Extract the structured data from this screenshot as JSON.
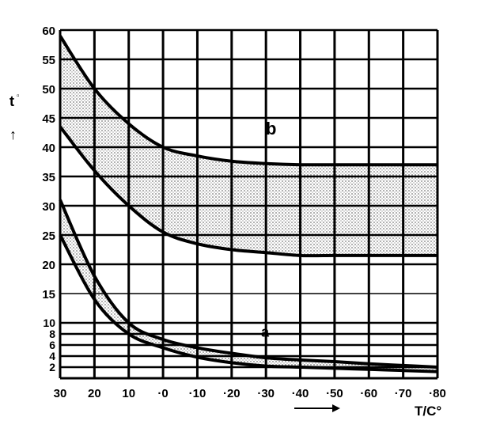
{
  "chart_data": {
    "type": "area",
    "title": "",
    "xlabel": "T/C°",
    "ylabel": "t",
    "x_ticks": [
      "30",
      "20",
      "10",
      "·0",
      "·10",
      "·20",
      "·30",
      "·40",
      "·50",
      "·60",
      "·70",
      "·80"
    ],
    "x_values": [
      -30,
      -20,
      -10,
      0,
      10,
      20,
      30,
      40,
      50,
      60,
      70,
      80
    ],
    "xlim": [
      -30,
      80
    ],
    "y_ticks_upper": [
      "20",
      "25",
      "30",
      "35",
      "40",
      "45",
      "50",
      "55",
      "60"
    ],
    "y_ticks_lower": [
      "2",
      "4",
      "6",
      "8",
      "10"
    ],
    "y_tick_15": "15",
    "grid": true,
    "bands": [
      {
        "label": "b",
        "upper": [
          {
            "x": -30,
            "y": 59
          },
          {
            "x": -20,
            "y": 50
          },
          {
            "x": -10,
            "y": 44
          },
          {
            "x": 0,
            "y": 40
          },
          {
            "x": 10,
            "y": 38.5
          },
          {
            "x": 20,
            "y": 37.6
          },
          {
            "x": 30,
            "y": 37.2
          },
          {
            "x": 40,
            "y": 37
          },
          {
            "x": 50,
            "y": 37
          },
          {
            "x": 60,
            "y": 37
          },
          {
            "x": 70,
            "y": 37
          },
          {
            "x": 80,
            "y": 37
          }
        ],
        "lower": [
          {
            "x": -30,
            "y": 43.5
          },
          {
            "x": -20,
            "y": 36
          },
          {
            "x": -10,
            "y": 30
          },
          {
            "x": 0,
            "y": 25.5
          },
          {
            "x": 10,
            "y": 23.5
          },
          {
            "x": 20,
            "y": 22.5
          },
          {
            "x": 30,
            "y": 22
          },
          {
            "x": 40,
            "y": 21.5
          },
          {
            "x": 50,
            "y": 21.5
          },
          {
            "x": 60,
            "y": 21.5
          },
          {
            "x": 70,
            "y": 21.5
          },
          {
            "x": 80,
            "y": 21.5
          }
        ]
      },
      {
        "label": "a",
        "upper": [
          {
            "x": -30,
            "y": 31
          },
          {
            "x": -20,
            "y": 18
          },
          {
            "x": -10,
            "y": 10
          },
          {
            "x": 0,
            "y": 7
          },
          {
            "x": 10,
            "y": 5.5
          },
          {
            "x": 20,
            "y": 4.5
          },
          {
            "x": 30,
            "y": 3.7
          },
          {
            "x": 40,
            "y": 3.3
          },
          {
            "x": 50,
            "y": 3
          },
          {
            "x": 60,
            "y": 2.6
          },
          {
            "x": 70,
            "y": 2.3
          },
          {
            "x": 80,
            "y": 2
          }
        ],
        "lower": [
          {
            "x": -30,
            "y": 25
          },
          {
            "x": -20,
            "y": 14
          },
          {
            "x": -10,
            "y": 8
          },
          {
            "x": 0,
            "y": 5.5
          },
          {
            "x": 10,
            "y": 3.8
          },
          {
            "x": 20,
            "y": 2.8
          },
          {
            "x": 30,
            "y": 2.2
          },
          {
            "x": 40,
            "y": 2
          },
          {
            "x": 50,
            "y": 1.8
          },
          {
            "x": 60,
            "y": 1.6
          },
          {
            "x": 70,
            "y": 1.4
          },
          {
            "x": 80,
            "y": 1.2
          }
        ]
      }
    ]
  }
}
